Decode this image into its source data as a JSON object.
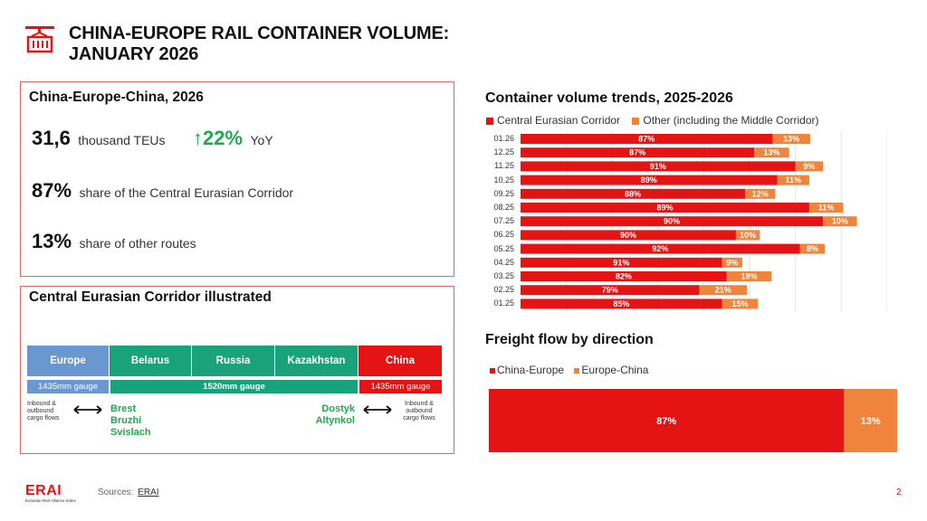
{
  "header": {
    "title_line1": "CHINA-EUROPE RAIL CONTAINER VOLUME:",
    "title_line2": "JANUARY 2026"
  },
  "summary": {
    "heading": "China-Europe-China,  2026",
    "volume_value": "31,6",
    "volume_unit": "thousand TEUs",
    "yoy_arrow": "↑",
    "yoy_value": "22%",
    "yoy_label": "YoY",
    "share_central_value": "87%",
    "share_central_label": "share of the Central Eurasian Corridor",
    "share_other_value": "13%",
    "share_other_label": "share of other routes"
  },
  "corridor": {
    "heading": "Central Eurasian Corridor illustrated",
    "segments": [
      "Europe",
      "Belarus",
      "Russia",
      "Kazakhstan",
      "China"
    ],
    "gauge_left": "1435mm gauge",
    "gauge_middle": "1520mm gauge",
    "gauge_right": "1435mm gauge",
    "note_left": [
      "Inbound &",
      "outbound",
      "cargo flows"
    ],
    "note_right": [
      "Inbound &",
      "outbound",
      "cargo flows"
    ],
    "west_crossings": [
      "Brest",
      "Bruzhi",
      "Svislach"
    ],
    "east_crossings": [
      "Dostyk",
      "Altynkol"
    ],
    "colors": {
      "europe": "#6b97d1",
      "transit": "#1aa37a",
      "china": "#e41414"
    }
  },
  "trends": {
    "heading": "Container volume trends, 2025-2026",
    "legend_central": "Central Eurasian Corridor",
    "legend_other": "Other (including the Middle Corridor)"
  },
  "flow": {
    "heading": "Freight flow by direction",
    "legend_a": "China-Europe",
    "legend_b": "Europe-China"
  },
  "chart_data": [
    {
      "type": "bar",
      "orientation": "horizontal",
      "stacked": true,
      "title": "Container volume trends, 2025-2026",
      "categories": [
        "01.26",
        "12.25",
        "11.25",
        "10.25",
        "09.25",
        "08.25",
        "07.25",
        "06.25",
        "05.25",
        "04.25",
        "03.25",
        "02.25",
        "01.25"
      ],
      "series": [
        {
          "name": "Central Eurasian Corridor",
          "color": "#e41414",
          "labels": [
            "87%",
            "87%",
            "91%",
            "89%",
            "88%",
            "89%",
            "90%",
            "90%",
            "92%",
            "91%",
            "82%",
            "79%",
            "85%"
          ],
          "values": [
            27.5,
            25.5,
            30,
            28,
            24.5,
            31.5,
            33,
            23.5,
            30.5,
            22,
            22.5,
            19.5,
            22
          ]
        },
        {
          "name": "Other (including the Middle Corridor)",
          "color": "#f0843c",
          "labels": [
            "13%",
            "13%",
            "9%",
            "11%",
            "12%",
            "11%",
            "10%",
            "10%",
            "8%",
            "9%",
            "18%",
            "21%",
            "15%"
          ],
          "values": [
            4.1,
            3.8,
            3.0,
            3.5,
            3.3,
            3.7,
            3.7,
            2.6,
            2.7,
            2.2,
            4.9,
            5.2,
            3.9
          ]
        }
      ],
      "grid": true
    },
    {
      "type": "bar",
      "orientation": "horizontal",
      "stacked": true,
      "title": "Freight flow by direction",
      "series": [
        {
          "name": "China-Europe",
          "color": "#e41414",
          "label": "87%",
          "value": 87
        },
        {
          "name": "Europe-China",
          "color": "#f0843c",
          "label": "13%",
          "value": 13
        }
      ]
    }
  ],
  "footer": {
    "logo": "ERAI",
    "logo_sub": "Eurasian Rail Alliance Index",
    "sources_label": "Sources:",
    "sources_link": "ERAI",
    "page": "2"
  }
}
